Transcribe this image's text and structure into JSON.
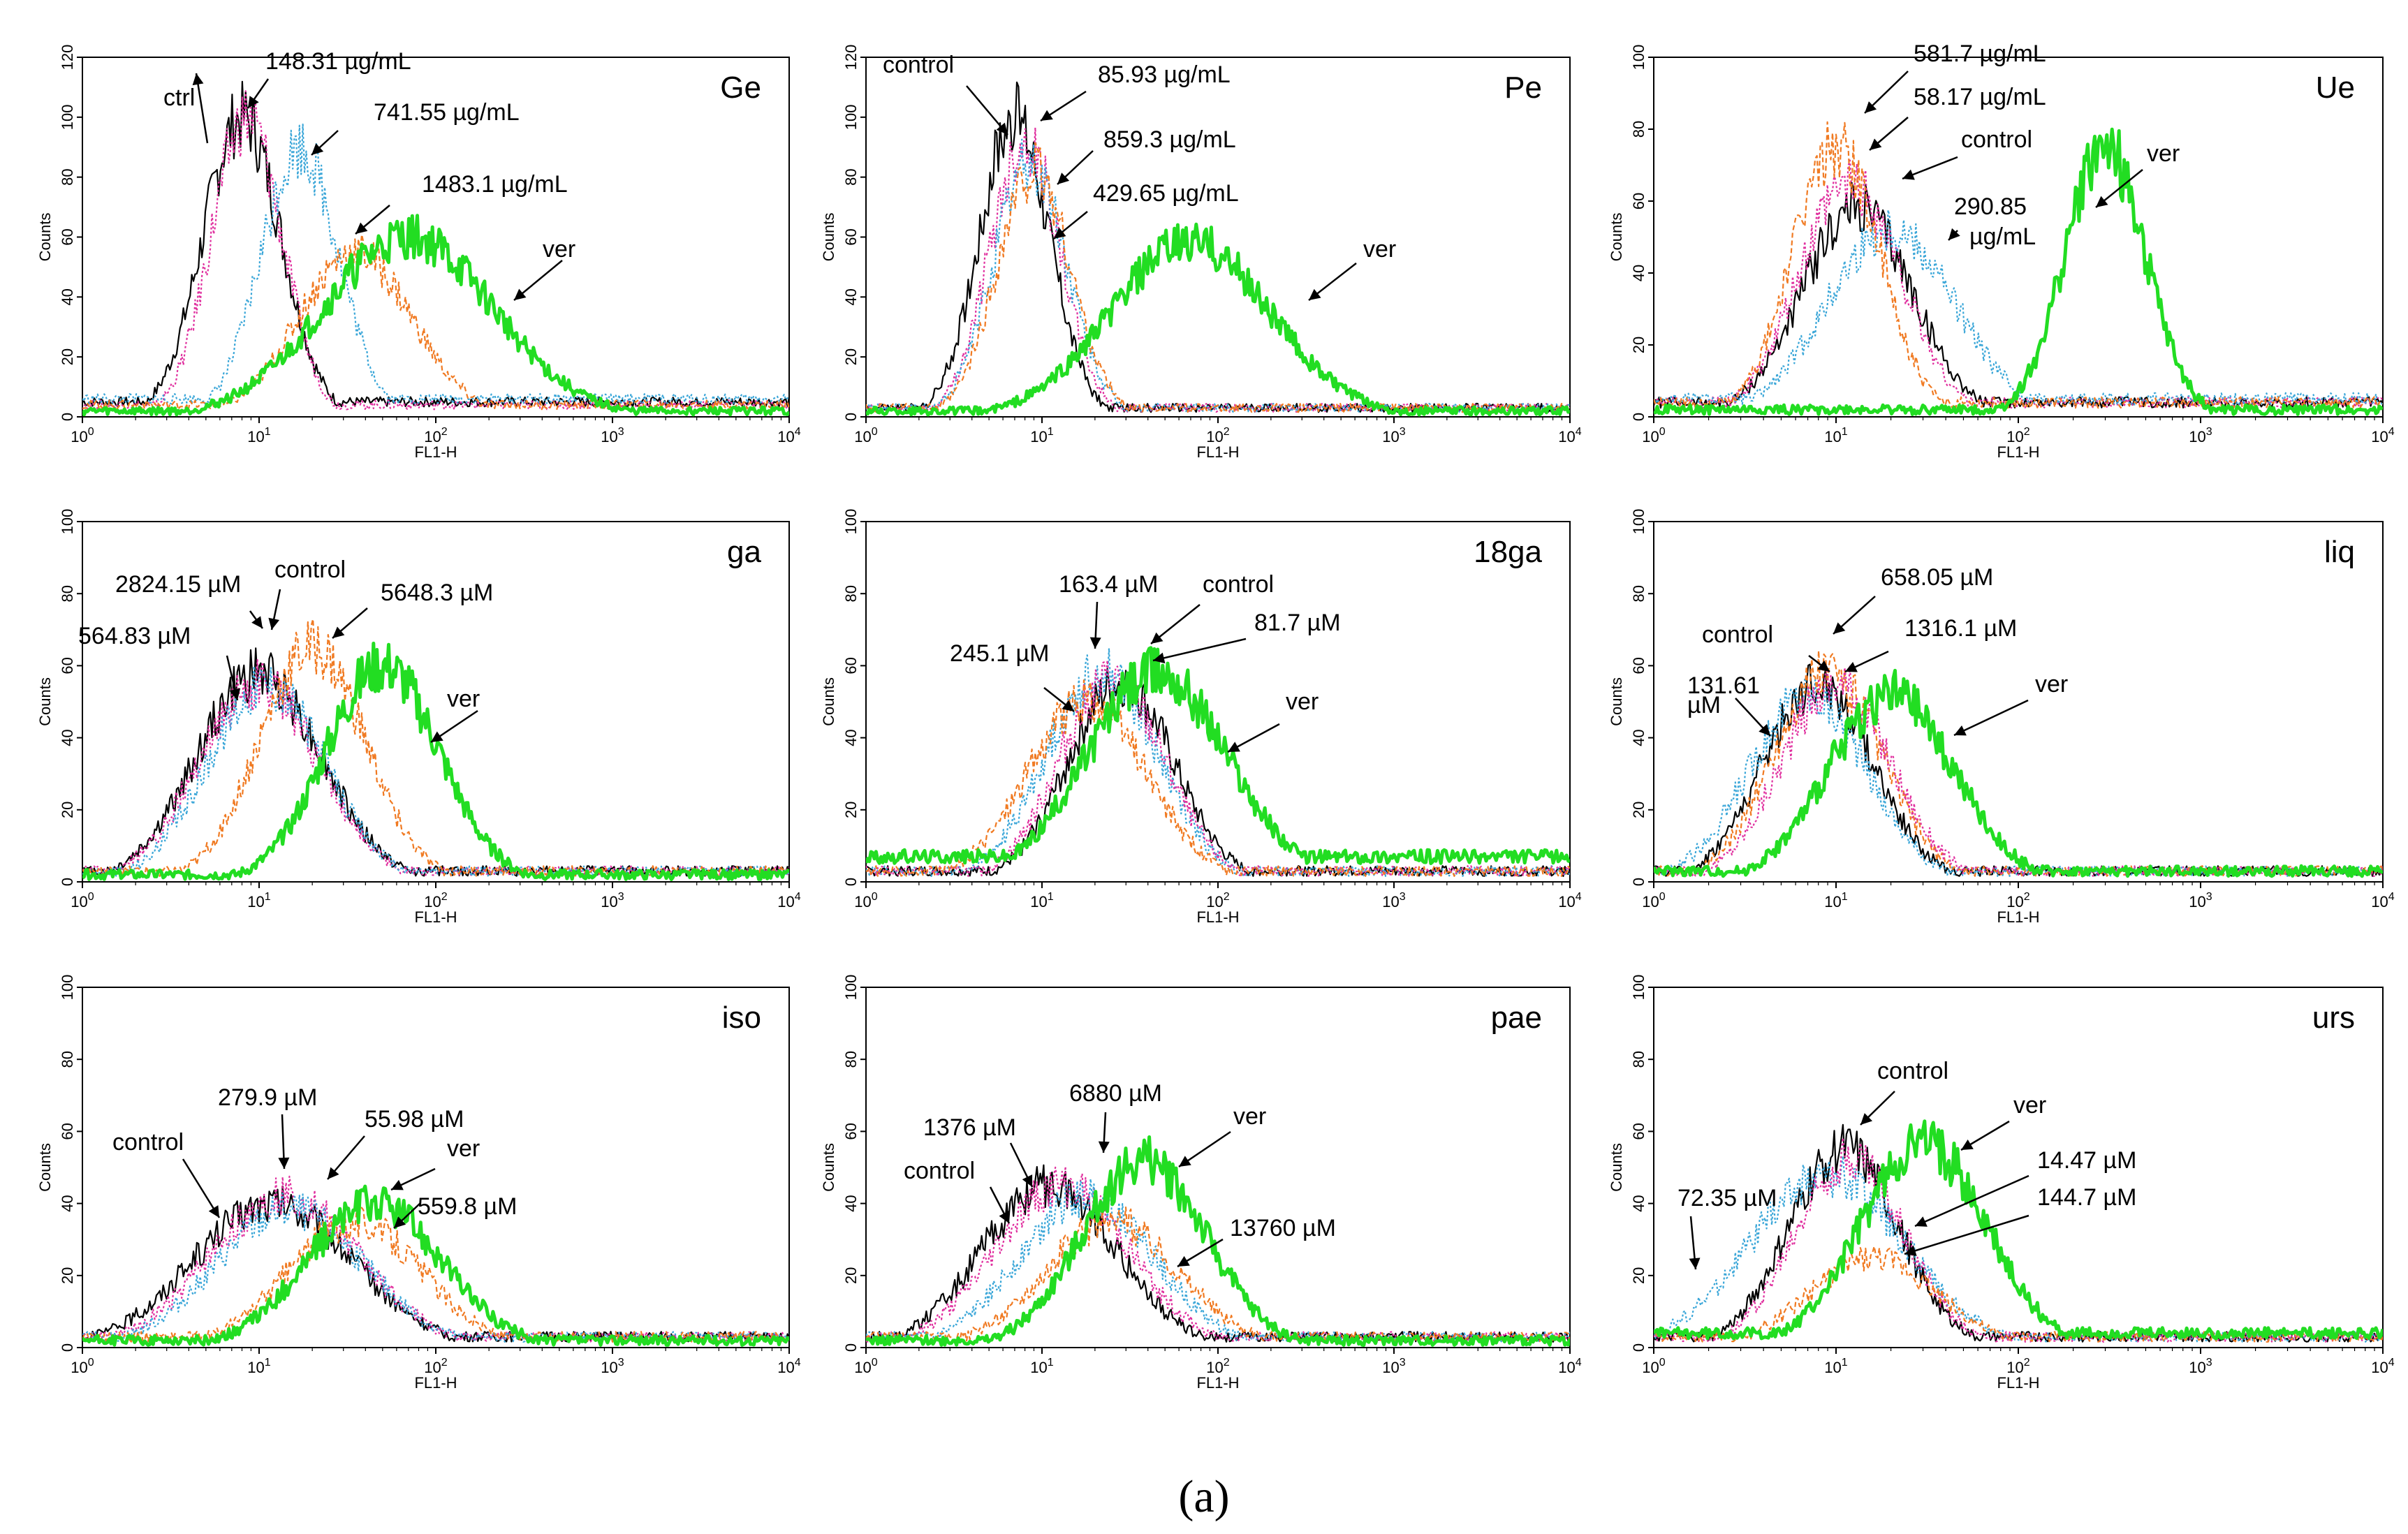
{
  "figure": {
    "caption": "(a)",
    "colors": {
      "control": "#000000",
      "low": "#e0309f",
      "mid": "#3aa6d8",
      "high": "#f07a22",
      "ver": "#22dd22"
    }
  },
  "chart_data": [
    {
      "type": "line",
      "title": "Ge",
      "xlabel": "FL1-H",
      "ylabel": "Counts",
      "xscale": "log",
      "xlim": [
        1,
        10000
      ],
      "ylim": [
        0,
        120
      ],
      "yticks": [
        0,
        20,
        40,
        60,
        80,
        100,
        120
      ],
      "series": [
        {
          "name": "ctrl",
          "color": "control",
          "style": "solid",
          "peak_x": 8,
          "peak_y": 100,
          "width": 0.22,
          "tail": 5
        },
        {
          "name": "148.31 µg/mL",
          "color": "low",
          "style": "dotted",
          "peak_x": 8.5,
          "peak_y": 100,
          "width": 0.2,
          "tail": 4
        },
        {
          "name": "741.55 µg/mL",
          "color": "mid",
          "style": "dotted",
          "peak_x": 17,
          "peak_y": 90,
          "width": 0.22,
          "tail": 6
        },
        {
          "name": "1483.1 µg/mL",
          "color": "high",
          "style": "dashed",
          "peak_x": 35,
          "peak_y": 55,
          "width": 0.32,
          "tail": 4
        },
        {
          "name": "ver",
          "color": "ver",
          "style": "solid",
          "peak_x": 70,
          "peak_y": 60,
          "width": 0.48,
          "tail": 2
        }
      ],
      "annotations": [
        {
          "text": "ctrl",
          "series": 0
        },
        {
          "text": "148.31 µg/mL",
          "series": 1
        },
        {
          "text": "741.55 µg/mL",
          "series": 2
        },
        {
          "text": "1483.1 µg/mL",
          "series": 3
        },
        {
          "text": "ver",
          "series": 4
        }
      ]
    },
    {
      "type": "line",
      "title": "Pe",
      "xlabel": "FL1-H",
      "ylabel": "Counts",
      "xscale": "log",
      "xlim": [
        1,
        10000
      ],
      "ylim": [
        0,
        120
      ],
      "yticks": [
        0,
        20,
        40,
        60,
        80,
        100,
        120
      ],
      "series": [
        {
          "name": "control",
          "color": "control",
          "style": "solid",
          "peak_x": 7,
          "peak_y": 100,
          "width": 0.2,
          "tail": 3
        },
        {
          "name": "85.93 µg/mL",
          "color": "low",
          "style": "dotted",
          "peak_x": 8,
          "peak_y": 92,
          "width": 0.2,
          "tail": 3
        },
        {
          "name": "859.3 µg/mL",
          "color": "mid",
          "style": "dotted",
          "peak_x": 8.5,
          "peak_y": 85,
          "width": 0.21,
          "tail": 3
        },
        {
          "name": "429.65 µg/mL",
          "color": "high",
          "style": "dashed",
          "peak_x": 9,
          "peak_y": 82,
          "width": 0.21,
          "tail": 3
        },
        {
          "name": "ver",
          "color": "ver",
          "style": "solid",
          "peak_x": 70,
          "peak_y": 58,
          "width": 0.45,
          "tail": 2
        }
      ],
      "annotations": [
        {
          "text": "control",
          "series": 0
        },
        {
          "text": "85.93 µg/mL",
          "series": 1
        },
        {
          "text": "859.3 µg/mL",
          "series": 2
        },
        {
          "text": "429.65 µg/mL",
          "series": 3
        },
        {
          "text": "ver",
          "series": 4
        }
      ]
    },
    {
      "type": "line",
      "title": "Ue",
      "xlabel": "FL1-H",
      "ylabel": "Counts",
      "xscale": "log",
      "xlim": [
        1,
        10000
      ],
      "ylim": [
        0,
        100
      ],
      "yticks": [
        0,
        20,
        40,
        60,
        80,
        100
      ],
      "series": [
        {
          "name": "control",
          "color": "control",
          "style": "solid",
          "peak_x": 13,
          "peak_y": 58,
          "width": 0.3,
          "tail": 4
        },
        {
          "name": "58.17 µg/mL",
          "color": "low",
          "style": "dotted",
          "peak_x": 12,
          "peak_y": 65,
          "width": 0.28,
          "tail": 4
        },
        {
          "name": "290.85 µg/mL",
          "color": "mid",
          "style": "dotted",
          "peak_x": 20,
          "peak_y": 52,
          "width": 0.35,
          "tail": 5
        },
        {
          "name": "581.7 µg/mL",
          "color": "high",
          "style": "dashed",
          "peak_x": 10,
          "peak_y": 75,
          "width": 0.24,
          "tail": 4
        },
        {
          "name": "ver",
          "color": "ver",
          "style": "solid",
          "peak_x": 300,
          "peak_y": 75,
          "width": 0.22,
          "tail": 2
        }
      ],
      "annotations": [
        {
          "text": "581.7 µg/mL",
          "series": 3
        },
        {
          "text": "58.17 µg/mL",
          "series": 1
        },
        {
          "text": "control",
          "series": 0
        },
        {
          "text": "290.85",
          "series": 2
        },
        {
          "text": "µg/mL",
          "series": 2
        },
        {
          "text": "ver",
          "series": 4
        }
      ]
    },
    {
      "type": "line",
      "title": "ga",
      "xlabel": "FL1-H",
      "ylabel": "Counts",
      "xscale": "log",
      "xlim": [
        1,
        10000
      ],
      "ylim": [
        0,
        100
      ],
      "yticks": [
        0,
        20,
        40,
        60,
        80,
        100
      ],
      "series": [
        {
          "name": "control",
          "color": "control",
          "style": "solid",
          "peak_x": 10,
          "peak_y": 58,
          "width": 0.35,
          "tail": 3
        },
        {
          "name": "564.83 µM",
          "color": "low",
          "style": "dotted",
          "peak_x": 10,
          "peak_y": 55,
          "width": 0.34,
          "tail": 3
        },
        {
          "name": "2824.15 µM",
          "color": "mid",
          "style": "dotted",
          "peak_x": 11,
          "peak_y": 55,
          "width": 0.33,
          "tail": 3
        },
        {
          "name": "5648.3 µM",
          "color": "high",
          "style": "dashed",
          "peak_x": 20,
          "peak_y": 65,
          "width": 0.3,
          "tail": 3
        },
        {
          "name": "ver",
          "color": "ver",
          "style": "solid",
          "peak_x": 50,
          "peak_y": 60,
          "width": 0.32,
          "tail": 2
        }
      ],
      "annotations": [
        {
          "text": "2824.15 µM",
          "series": 2
        },
        {
          "text": "control",
          "series": 0
        },
        {
          "text": "5648.3 µM",
          "series": 3
        },
        {
          "text": "564.83 µM",
          "series": 1
        },
        {
          "text": "ver",
          "series": 4
        }
      ]
    },
    {
      "type": "line",
      "title": "18ga",
      "xlabel": "FL1-H",
      "ylabel": "Counts",
      "xscale": "log",
      "xlim": [
        1,
        10000
      ],
      "ylim": [
        0,
        100
      ],
      "yticks": [
        0,
        20,
        40,
        60,
        80,
        100
      ],
      "series": [
        {
          "name": "control",
          "color": "control",
          "style": "solid",
          "peak_x": 28,
          "peak_y": 55,
          "width": 0.3,
          "tail": 3
        },
        {
          "name": "163.4 µM",
          "color": "mid",
          "style": "dotted",
          "peak_x": 22,
          "peak_y": 58,
          "width": 0.32,
          "tail": 3
        },
        {
          "name": "81.7 µM",
          "color": "low",
          "style": "dotted",
          "peak_x": 25,
          "peak_y": 56,
          "width": 0.3,
          "tail": 3
        },
        {
          "name": "245.1 µM",
          "color": "high",
          "style": "dashed",
          "peak_x": 18,
          "peak_y": 50,
          "width": 0.34,
          "tail": 3
        },
        {
          "name": "ver",
          "color": "ver",
          "style": "solid",
          "peak_x": 45,
          "peak_y": 58,
          "width": 0.4,
          "tail": 7
        }
      ],
      "annotations": [
        {
          "text": "163.4 µM",
          "series": 1
        },
        {
          "text": "control",
          "series": 0
        },
        {
          "text": "81.7 µM",
          "series": 2
        },
        {
          "text": "245.1 µM",
          "series": 3
        },
        {
          "text": "ver",
          "series": 4
        }
      ]
    },
    {
      "type": "line",
      "title": "liq",
      "xlabel": "FL1-H",
      "ylabel": "Counts",
      "xscale": "log",
      "xlim": [
        1,
        10000
      ],
      "ylim": [
        0,
        100
      ],
      "yticks": [
        0,
        20,
        40,
        60,
        80,
        100
      ],
      "series": [
        {
          "name": "control",
          "color": "control",
          "style": "solid",
          "peak_x": 8,
          "peak_y": 55,
          "width": 0.3,
          "tail": 3
        },
        {
          "name": "131.61 µM",
          "color": "mid",
          "style": "dotted",
          "peak_x": 7,
          "peak_y": 52,
          "width": 0.32,
          "tail": 3
        },
        {
          "name": "658.05 µM",
          "color": "high",
          "style": "dashed",
          "peak_x": 9,
          "peak_y": 58,
          "width": 0.3,
          "tail": 3
        },
        {
          "name": "1316.1 µM",
          "color": "low",
          "style": "dotted",
          "peak_x": 10,
          "peak_y": 55,
          "width": 0.3,
          "tail": 3
        },
        {
          "name": "ver",
          "color": "ver",
          "style": "solid",
          "peak_x": 20,
          "peak_y": 52,
          "width": 0.34,
          "tail": 3
        }
      ],
      "annotations": [
        {
          "text": "658.05 µM",
          "series": 2
        },
        {
          "text": "control",
          "series": 0
        },
        {
          "text": "1316.1 µM",
          "series": 3
        },
        {
          "text": "131.61",
          "series": 1
        },
        {
          "text": "µM",
          "series": 1
        },
        {
          "text": "ver",
          "series": 4
        }
      ]
    },
    {
      "type": "line",
      "title": "iso",
      "xlabel": "FL1-H",
      "ylabel": "Counts",
      "xscale": "log",
      "xlim": [
        1,
        10000
      ],
      "ylim": [
        0,
        100
      ],
      "yticks": [
        0,
        20,
        40,
        60,
        80,
        100
      ],
      "series": [
        {
          "name": "control",
          "color": "control",
          "style": "solid",
          "peak_x": 12,
          "peak_y": 40,
          "width": 0.45,
          "tail": 3
        },
        {
          "name": "279.9 µM",
          "color": "low",
          "style": "dotted",
          "peak_x": 14,
          "peak_y": 42,
          "width": 0.42,
          "tail": 3
        },
        {
          "name": "55.98 µM",
          "color": "mid",
          "style": "dotted",
          "peak_x": 15,
          "peak_y": 38,
          "width": 0.42,
          "tail": 3
        },
        {
          "name": "559.8 µM",
          "color": "high",
          "style": "dashed",
          "peak_x": 35,
          "peak_y": 35,
          "width": 0.38,
          "tail": 3
        },
        {
          "name": "ver",
          "color": "ver",
          "style": "solid",
          "peak_x": 45,
          "peak_y": 40,
          "width": 0.38,
          "tail": 2
        }
      ],
      "annotations": [
        {
          "text": "279.9 µM",
          "series": 1
        },
        {
          "text": "55.98 µM",
          "series": 2
        },
        {
          "text": "control",
          "series": 0
        },
        {
          "text": "ver",
          "series": 4
        },
        {
          "text": "559.8 µM",
          "series": 3
        }
      ]
    },
    {
      "type": "line",
      "title": "pae",
      "xlabel": "FL1-H",
      "ylabel": "Counts",
      "xscale": "log",
      "xlim": [
        1,
        10000
      ],
      "ylim": [
        0,
        100
      ],
      "yticks": [
        0,
        20,
        40,
        60,
        80,
        100
      ],
      "series": [
        {
          "name": "control",
          "color": "control",
          "style": "solid",
          "peak_x": 11,
          "peak_y": 45,
          "width": 0.38,
          "tail": 3
        },
        {
          "name": "1376 µM",
          "color": "low",
          "style": "dotted",
          "peak_x": 13,
          "peak_y": 45,
          "width": 0.38,
          "tail": 3
        },
        {
          "name": "6880 µM",
          "color": "mid",
          "style": "dotted",
          "peak_x": 18,
          "peak_y": 42,
          "width": 0.38,
          "tail": 3
        },
        {
          "name": "13760 µM",
          "color": "high",
          "style": "dashed",
          "peak_x": 25,
          "peak_y": 35,
          "width": 0.38,
          "tail": 3
        },
        {
          "name": "ver",
          "color": "ver",
          "style": "solid",
          "peak_x": 38,
          "peak_y": 52,
          "width": 0.35,
          "tail": 2
        }
      ],
      "annotations": [
        {
          "text": "1376 µM",
          "series": 1
        },
        {
          "text": "6880 µM",
          "series": 2
        },
        {
          "text": "ver",
          "series": 4
        },
        {
          "text": "control",
          "series": 0
        },
        {
          "text": "13760 µM",
          "series": 3
        }
      ]
    },
    {
      "type": "line",
      "title": "urs",
      "xlabel": "FL1-H",
      "ylabel": "Counts",
      "xscale": "log",
      "xlim": [
        1,
        10000
      ],
      "ylim": [
        0,
        100
      ],
      "yticks": [
        0,
        20,
        40,
        60,
        80,
        100
      ],
      "series": [
        {
          "name": "control",
          "color": "control",
          "style": "solid",
          "peak_x": 11,
          "peak_y": 55,
          "width": 0.3,
          "tail": 3
        },
        {
          "name": "72.35 µM",
          "color": "mid",
          "style": "dotted",
          "peak_x": 9,
          "peak_y": 48,
          "width": 0.42,
          "tail": 3
        },
        {
          "name": "14.47 µM",
          "color": "low",
          "style": "dotted",
          "peak_x": 12,
          "peak_y": 52,
          "width": 0.3,
          "tail": 3
        },
        {
          "name": "144.7 µM",
          "color": "high",
          "style": "dashed",
          "peak_x": 16,
          "peak_y": 25,
          "width": 0.35,
          "tail": 3
        },
        {
          "name": "ver",
          "color": "ver",
          "style": "solid",
          "peak_x": 30,
          "peak_y": 57,
          "width": 0.34,
          "tail": 4
        }
      ],
      "annotations": [
        {
          "text": "control",
          "series": 0
        },
        {
          "text": "ver",
          "series": 4
        },
        {
          "text": "14.47 µM",
          "series": 2
        },
        {
          "text": "144.7 µM",
          "series": 3
        },
        {
          "text": "72.35 µM",
          "series": 1
        }
      ]
    }
  ]
}
